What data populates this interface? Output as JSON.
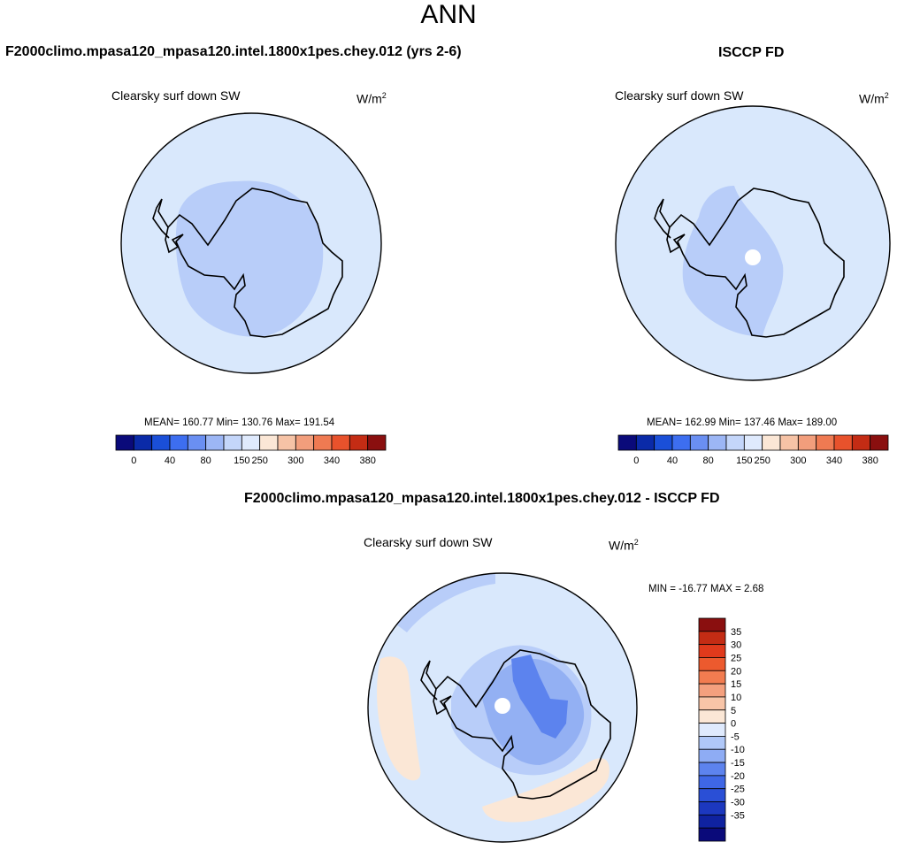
{
  "title": "ANN",
  "panels": [
    {
      "title": "F2000climo.mpasa120_mpasa120.intel.1800x1pes.chey.012 (yrs 2-6)",
      "field_label": "Clearsky surf down SW",
      "units_base": "W/m",
      "units_exp": "2",
      "stats": "MEAN= 160.77  Min= 130.76  Max= 191.54"
    },
    {
      "title": "ISCCP FD",
      "field_label": "Clearsky surf down SW",
      "units_base": "W/m",
      "units_exp": "2",
      "stats": "MEAN= 162.99  Min= 137.46  Max= 189.00"
    },
    {
      "title": "F2000climo.mpasa120_mpasa120.intel.1800x1pes.chey.012 - ISCCP FD",
      "field_label": "Clearsky surf down SW",
      "units_base": "W/m",
      "units_exp": "2",
      "stats": "MIN = -16.77 MAX =   2.68"
    }
  ],
  "colorbar_abs": {
    "colors": [
      "#0a0a7a",
      "#0a2aa8",
      "#1a4fd8",
      "#3d6ef0",
      "#6a8ff2",
      "#9cb6f5",
      "#c4d6fa",
      "#dfeafd",
      "#fbe7d6",
      "#f6c3a6",
      "#f29e7c",
      "#ef7a52",
      "#e8522c",
      "#c42c14",
      "#8a0f0f"
    ],
    "tick_labels": [
      "0",
      "40",
      "80",
      "150",
      "250",
      "300",
      "340",
      "380"
    ]
  },
  "colorbar_diff": {
    "colors": [
      "#8a0f0f",
      "#c42c14",
      "#e03a1c",
      "#ec5a2e",
      "#f27c50",
      "#f4a07e",
      "#f8c5a8",
      "#fbe7d6",
      "#dfeafd",
      "#b0c8f8",
      "#8eacf4",
      "#5d83ee",
      "#3f67e6",
      "#2a4fd6",
      "#1c38bf",
      "#0f22a0",
      "#0a0a7a"
    ],
    "tick_labels": [
      "35",
      "30",
      "25",
      "20",
      "15",
      "10",
      "5",
      "0",
      "-5",
      "-10",
      "-15",
      "-20",
      "-25",
      "-30",
      "-35"
    ]
  },
  "map_colors": {
    "ocean": "#d9e8fc",
    "level_light": "#b8cdf9",
    "level_mid": "#93b0f3",
    "level_dark": "#5c83ee",
    "positive": "#fbe7d6",
    "missing": "#ffffff"
  }
}
